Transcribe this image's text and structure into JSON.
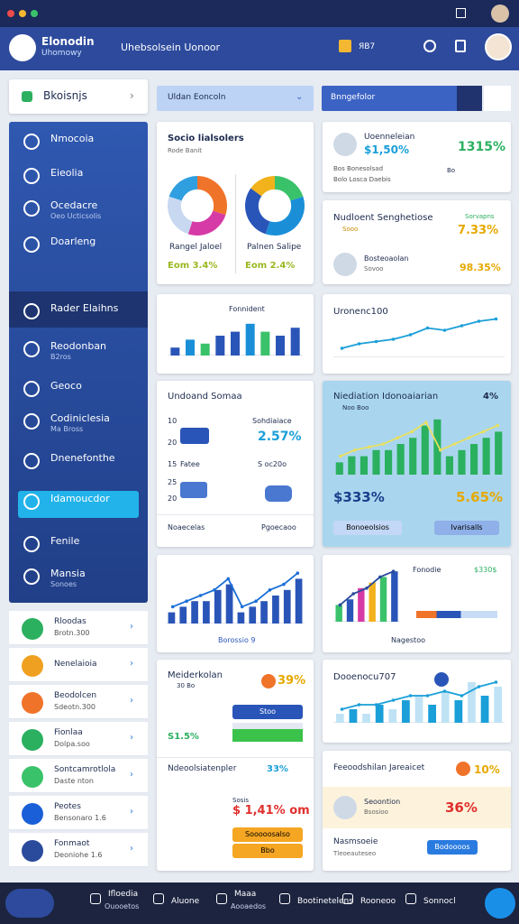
{
  "header": {
    "brand": "Elonodin",
    "brand_sub": "Uhomowy",
    "search": "Uhebsolsein Uonoor",
    "badge": "ЯВ7"
  },
  "sidebar": {
    "top": "Bkoisnjs",
    "nav": [
      {
        "label": "Nmocoia"
      },
      {
        "label": "Eieolia"
      },
      {
        "label": "Ocedacre",
        "sub": "Oeo Ucticsolis"
      },
      {
        "label": "Doarleng"
      },
      {
        "label": "Rader Elaihns"
      },
      {
        "label": "Reodonban",
        "sub": "B2ros"
      },
      {
        "label": "Geoco"
      },
      {
        "label": "Codiniclesia",
        "sub": "Ma Bross"
      },
      {
        "label": "Dnenefonthe"
      },
      {
        "label": "Idamoucdor"
      },
      {
        "label": "Fenile"
      },
      {
        "label": "Mansia",
        "sub": "Sonoes"
      }
    ],
    "list": [
      {
        "label": "Rloodas",
        "sub": "Brotn.300"
      },
      {
        "label": "Nenelaioia"
      },
      {
        "label": "Beodolcen",
        "sub": "Sdeotn.300"
      },
      {
        "label": "Fionlaa",
        "sub": "Dolpa.soo"
      },
      {
        "label": "Sontcamrotlola",
        "sub": "Daste nton"
      },
      {
        "label": "Peotes",
        "sub": "Bensonaro 1.6"
      },
      {
        "label": "Fonmaot",
        "sub": "Deoniohe 1.6"
      }
    ]
  },
  "toolbar": {
    "filter": "Uldan Eoncoln",
    "search": "Bnngefolor"
  },
  "cards": {
    "segments": {
      "title": "Socio lialsolers",
      "sub": "Rode Banit",
      "donuts": [
        {
          "label": "Rangel Jaloel",
          "note": "Eom 3.4%",
          "chart": {
            "type": "donut",
            "values": [
              30,
              25,
              25,
              20
            ],
            "colors": [
              "#f0732a",
              "#d63aa6",
              "#c8d8f0",
              "#2f9fe0"
            ]
          }
        },
        {
          "label": "Palnen Salipe",
          "note": "Eom 2.4%",
          "chart": {
            "type": "donut",
            "values": [
              20,
              35,
              30,
              15
            ],
            "colors": [
              "#3ac26a",
              "#1a8fd8",
              "#2a55b8",
              "#f2b21c"
            ]
          }
        }
      ]
    },
    "profile": {
      "name": "Uoenneleian",
      "amount": "$1,50%",
      "pct": "1315%",
      "line1": "Bos Bonesolsad",
      "line2": "Bolo Losca Daebis",
      "tag": "Bo"
    },
    "dept": {
      "title": "Nudloent Senghetiose",
      "note": "Sooo",
      "pct_label": "Sorvapns",
      "pct": "7.33%",
      "person": "Bosteoaolan",
      "person_sub": "Sovoo",
      "pct2": "98.35%"
    },
    "bars1": {
      "title": "Fonnident",
      "chart": {
        "type": "bar",
        "values": [
          2,
          4,
          3,
          5,
          6,
          8,
          6,
          5,
          7
        ],
        "ylim": [
          0,
          10
        ],
        "colors": [
          "#2a55b8",
          "#1a8fd8",
          "#3ac26a",
          "#2a55b8"
        ]
      }
    },
    "trend1": {
      "title": "Uronenc100",
      "chart": {
        "type": "line",
        "values": [
          2,
          3,
          3.5,
          4,
          5,
          6.5,
          6,
          7,
          8,
          8.5
        ],
        "ylim": [
          0,
          10
        ],
        "color": "#1a9fd8"
      }
    },
    "orders": {
      "title": "Undoand Somaa",
      "r1a": "10",
      "r1b": "Sohdiaiace",
      "r2a": "20",
      "r2b": "2.57%",
      "r3a": "15",
      "r3b": "Fatee",
      "r3c": "S oc20o",
      "r4a": "25",
      "r5a": "20",
      "foot1": "Noaecelas",
      "foot2": "Pgoecaoo"
    },
    "highlight": {
      "title": "Niediation Idonoaiarian",
      "pct": "4%",
      "sub": "Noo Boo",
      "amount": "$333%",
      "pct2": "5.65%",
      "btn1": "Bonoeolsios",
      "btn2": "Ivarisalls",
      "chart": {
        "type": "combo",
        "values": [
          2,
          3,
          3,
          4,
          4,
          5,
          6,
          8,
          9,
          3,
          4,
          5,
          6,
          7
        ],
        "line": [
          3,
          4,
          4.5,
          5,
          6,
          7,
          8.5,
          4,
          5,
          6,
          7,
          8
        ],
        "ylim": [
          0,
          10
        ],
        "colors": [
          "#2bb060"
        ],
        "color": "#e8e060"
      }
    },
    "bars2": {
      "label": "Borossio 9",
      "chart": {
        "type": "combo",
        "values": [
          2,
          3,
          4,
          4,
          6,
          7,
          2,
          3,
          4,
          5,
          6,
          8
        ],
        "line": [
          3,
          4,
          5,
          6,
          8,
          3,
          4,
          6,
          7,
          9
        ],
        "ylim": [
          0,
          10
        ],
        "colors": [
          "#2a55b8"
        ],
        "color": "#1a6fd8"
      }
    },
    "bars3": {
      "title": "Fonodie",
      "amount": "$330$",
      "foot": "Nagestoo",
      "chart": {
        "type": "combo",
        "values": [
          3,
          4,
          6,
          7,
          8,
          9
        ],
        "line": [
          3,
          5,
          6,
          8,
          9
        ],
        "ylim": [
          0,
          10
        ],
        "colors": [
          "#3ac26a",
          "#2a55b8",
          "#d63aa6",
          "#f2b21c"
        ],
        "color": "#2a4a9c"
      },
      "progress": {
        "type": "stack",
        "values": [
          25,
          30,
          45
        ],
        "colors": [
          "#f0732a",
          "#2a55b8",
          "#c8dcf5"
        ]
      }
    },
    "mix": {
      "title": "Meiderkolan",
      "sub": "30 Bo",
      "pct": "39%",
      "btn": "Stoo",
      "pct2": "S1.5%"
    },
    "trend2": {
      "title": "Dooenocu707",
      "chart": {
        "type": "combo",
        "values": [
          2,
          3,
          2,
          4,
          3,
          5,
          6,
          4,
          7,
          5,
          9,
          6,
          8
        ],
        "line": [
          3,
          4,
          4,
          5,
          6,
          6,
          7,
          6,
          8,
          9
        ],
        "ylim": [
          0,
          10
        ],
        "colors": [
          "#bfe3f5",
          "#1a9fd8"
        ],
        "color": "#1a9fd8"
      }
    },
    "schedule": {
      "title": "Ndeoolsiatenpler",
      "pct": "33%",
      "sub": "Sosis",
      "amount": "$ 1,41% om",
      "btn1": "Sooooosalso",
      "btn2": "Bbo"
    },
    "feedback": {
      "title": "Feeoodshilan Jareaicet",
      "pct": "10%",
      "name": "Seoontion",
      "sub": "Bsosioo",
      "pct2": "36%",
      "foot": "Nasmsoeie",
      "foot_sub": "Tleoeauteseo",
      "btn": "Bodoooos"
    }
  },
  "bottom": [
    {
      "label": "Ifloedia",
      "sub": "Ouooetos"
    },
    {
      "label": "Aluone"
    },
    {
      "label": "Maaa",
      "sub": "Aooaedos"
    },
    {
      "label": "Bootinetelens"
    },
    {
      "label": "Rooneoo"
    },
    {
      "label": "Sonnocl"
    }
  ]
}
